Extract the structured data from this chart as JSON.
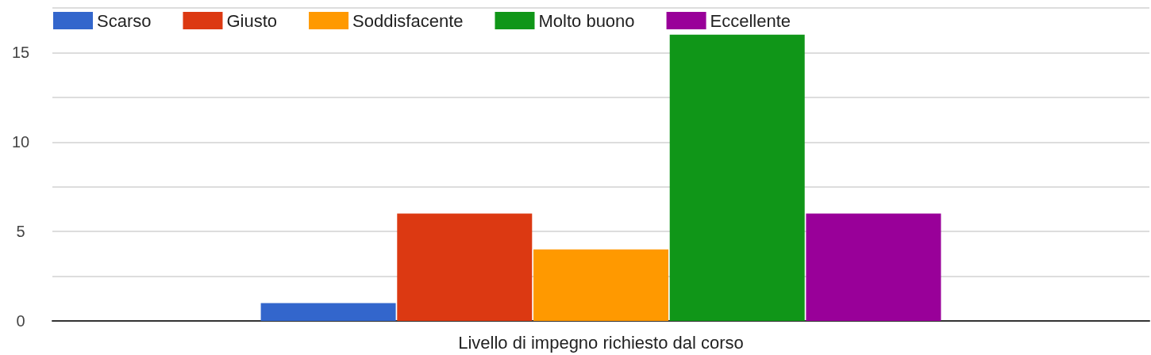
{
  "chart_data": {
    "type": "bar",
    "categories": [
      "Livello di impegno richiesto dal corso"
    ],
    "series": [
      {
        "name": "Scarso",
        "color": "#3366cc",
        "values": [
          1
        ]
      },
      {
        "name": "Giusto",
        "color": "#dc3912",
        "values": [
          6
        ]
      },
      {
        "name": "Soddisfacente",
        "color": "#ff9900",
        "values": [
          4
        ]
      },
      {
        "name": "Molto buono",
        "color": "#109618",
        "values": [
          16
        ]
      },
      {
        "name": "Eccellente",
        "color": "#990099",
        "values": [
          6
        ]
      }
    ],
    "ylim": [
      0,
      17.5
    ],
    "yticks": [
      0,
      {
        "value": 2.5,
        "label": null
      },
      5,
      {
        "value": 7.5,
        "label": null
      },
      10,
      {
        "value": 12.5,
        "label": null
      },
      15,
      {
        "value": 17.5,
        "label": null
      }
    ],
    "grid": "y",
    "legend": "top left"
  }
}
